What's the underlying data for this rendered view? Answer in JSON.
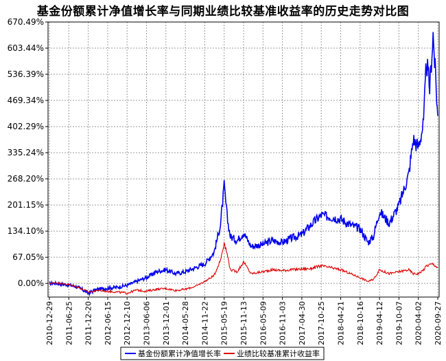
{
  "chart_data": {
    "type": "line",
    "title": "基金份额累计净值增长率与同期业绩比较基准收益率的历史走势对比图",
    "ylim": [
      -35,
      670.49
    ],
    "yticks": [
      "670.49%",
      "603.44%",
      "536.39%",
      "469.34%",
      "402.29%",
      "335.24%",
      "268.20%",
      "201.15%",
      "134.10%",
      "67.05%",
      "0.00%"
    ],
    "ytick_values": [
      670.49,
      603.44,
      536.39,
      469.34,
      402.29,
      335.24,
      268.2,
      201.15,
      134.1,
      67.05,
      0.0
    ],
    "xticks": [
      "2010-12-29",
      "2011-06-25",
      "2011-12-20",
      "2012-06-15",
      "2012-12-10",
      "2013-06-06",
      "2013-12-01",
      "2014-05-28",
      "2014-11-22",
      "2015-05-19",
      "2015-11-13",
      "2016-05-09",
      "2016-11-03",
      "2017-04-30",
      "2017-10-25",
      "2018-04-21",
      "2018-10-16",
      "2019-04-12",
      "2019-10-07",
      "2020-04-02",
      "2020-09-27"
    ],
    "grid": true,
    "legend_position": "bottom",
    "series": [
      {
        "name": "基金份额累计净值增长率",
        "color": "#0000ee",
        "x": [
          "2010-12-29",
          "2011-03-01",
          "2011-06-25",
          "2011-09-20",
          "2011-12-20",
          "2012-03-15",
          "2012-06-15",
          "2012-09-10",
          "2012-12-10",
          "2013-03-05",
          "2013-06-06",
          "2013-09-05",
          "2013-12-01",
          "2014-03-01",
          "2014-05-28",
          "2014-08-25",
          "2014-11-22",
          "2015-02-15",
          "2015-04-15",
          "2015-05-19",
          "2015-06-20",
          "2015-07-15",
          "2015-09-15",
          "2015-11-13",
          "2016-01-20",
          "2016-05-09",
          "2016-08-01",
          "2016-11-03",
          "2017-01-15",
          "2017-04-30",
          "2017-07-20",
          "2017-10-25",
          "2018-01-25",
          "2018-04-21",
          "2018-07-20",
          "2018-10-16",
          "2018-12-28",
          "2019-02-15",
          "2019-04-12",
          "2019-07-10",
          "2019-10-07",
          "2020-01-05",
          "2020-02-15",
          "2020-04-02",
          "2020-05-20",
          "2020-06-15",
          "2020-07-15",
          "2020-08-15",
          "2020-09-27"
        ],
        "values": [
          0,
          0,
          -4,
          -10,
          -25,
          -15,
          -12,
          -10,
          -5,
          5,
          15,
          30,
          35,
          25,
          30,
          40,
          50,
          80,
          150,
          250,
          160,
          120,
          110,
          130,
          95,
          100,
          110,
          105,
          115,
          125,
          150,
          175,
          170,
          165,
          150,
          140,
          105,
          120,
          185,
          155,
          200,
          280,
          370,
          350,
          410,
          570,
          500,
          640,
          430
        ]
      },
      {
        "name": "业绩比较基准累计收益率",
        "color": "#dd0000",
        "x": [
          "2010-12-29",
          "2011-03-01",
          "2011-06-25",
          "2011-09-20",
          "2011-12-20",
          "2012-03-15",
          "2012-06-15",
          "2012-09-10",
          "2012-12-10",
          "2013-03-05",
          "2013-06-06",
          "2013-09-05",
          "2013-12-01",
          "2014-03-01",
          "2014-05-28",
          "2014-08-25",
          "2014-11-22",
          "2015-02-15",
          "2015-04-15",
          "2015-05-19",
          "2015-06-20",
          "2015-07-15",
          "2015-09-15",
          "2015-11-13",
          "2016-01-20",
          "2016-05-09",
          "2016-08-01",
          "2016-11-03",
          "2017-01-15",
          "2017-04-30",
          "2017-07-20",
          "2017-10-25",
          "2018-01-25",
          "2018-04-21",
          "2018-07-20",
          "2018-10-16",
          "2018-12-28",
          "2019-02-15",
          "2019-04-12",
          "2019-07-10",
          "2019-10-07",
          "2020-01-05",
          "2020-02-15",
          "2020-04-02",
          "2020-05-20",
          "2020-06-15",
          "2020-07-15",
          "2020-08-15",
          "2020-09-27"
        ],
        "values": [
          0,
          2,
          -3,
          -10,
          -22,
          -18,
          -20,
          -22,
          -25,
          -17,
          -20,
          -15,
          -13,
          -18,
          -15,
          -8,
          5,
          20,
          60,
          105,
          70,
          35,
          30,
          55,
          25,
          30,
          35,
          33,
          35,
          37,
          38,
          45,
          40,
          35,
          25,
          15,
          5,
          10,
          35,
          25,
          30,
          35,
          25,
          25,
          35,
          45,
          48,
          50,
          40
        ]
      }
    ]
  }
}
